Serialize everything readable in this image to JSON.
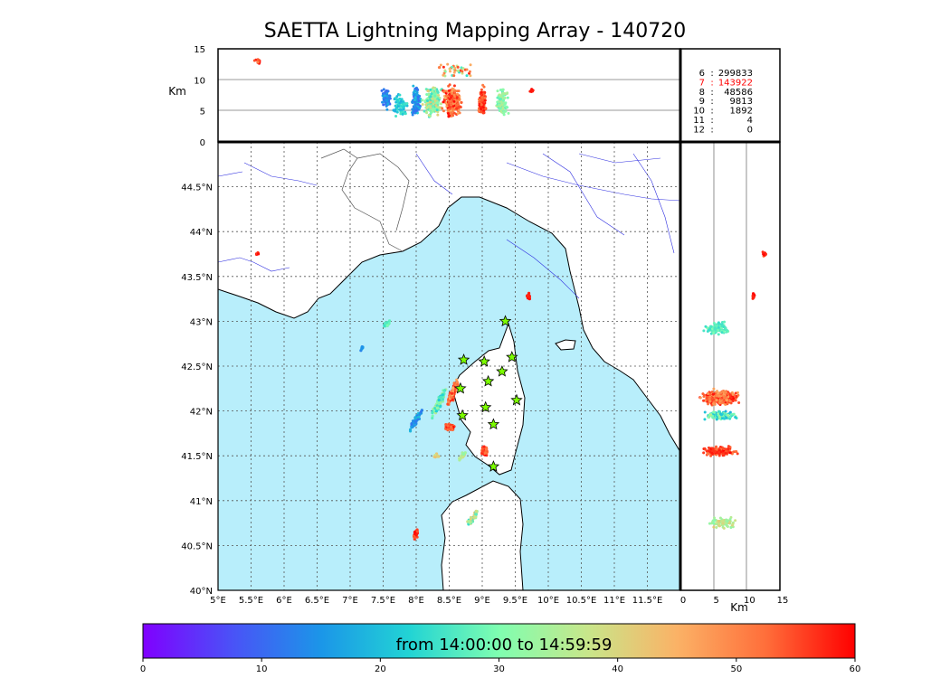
{
  "title": "SAETTA Lightning Mapping Array - 140720",
  "colorbar": {
    "label": "from 14:00:00 to 14:59:59",
    "ticks": [
      "0",
      "10",
      "20",
      "30",
      "40",
      "50",
      "60"
    ],
    "min": 0,
    "max": 60,
    "colors": [
      "#8000ff",
      "#4a52f7",
      "#1b96e8",
      "#22d4d4",
      "#7ffeb0",
      "#c8e68a",
      "#fbb266",
      "#ff6e3a",
      "#ff0000"
    ]
  },
  "map": {
    "lon_ticks": [
      "5°E",
      "5.5°E",
      "6°E",
      "6.5°E",
      "7°E",
      "7.5°E",
      "8°E",
      "8.5°E",
      "9°E",
      "9.5°E",
      "10°E",
      "10.5°E",
      "11°E",
      "11.5°E"
    ],
    "lat_ticks": [
      "44.5°N",
      "44°N",
      "43.5°N",
      "43°N",
      "42.5°N",
      "42°N",
      "41.5°N",
      "41°N",
      "40.5°N",
      "40°N"
    ],
    "lon_range": [
      5,
      12
    ],
    "lat_range": [
      40,
      45
    ],
    "sea_color": "#b8eefb",
    "stations": [
      {
        "lon": 9.35,
        "lat": 43.0
      },
      {
        "lon": 9.45,
        "lat": 42.6
      },
      {
        "lon": 9.03,
        "lat": 42.55
      },
      {
        "lon": 8.72,
        "lat": 42.57
      },
      {
        "lon": 9.3,
        "lat": 42.44
      },
      {
        "lon": 9.09,
        "lat": 42.33
      },
      {
        "lon": 8.67,
        "lat": 42.25
      },
      {
        "lon": 9.52,
        "lat": 42.12
      },
      {
        "lon": 9.05,
        "lat": 42.04
      },
      {
        "lon": 8.7,
        "lat": 41.95
      },
      {
        "lon": 9.17,
        "lat": 41.85
      },
      {
        "lon": 9.17,
        "lat": 41.38
      }
    ]
  },
  "top_panel": {
    "ylabel": "Km",
    "yticks": [
      "0",
      "5",
      "10",
      "15"
    ],
    "yrange": [
      0,
      15
    ]
  },
  "side_panel": {
    "xlabel": "Km",
    "xticks": [
      "0",
      "5",
      "10",
      "15"
    ],
    "xrange": [
      0,
      15
    ]
  },
  "counts": [
    {
      "level": "6",
      "count": "299833",
      "highlight": false
    },
    {
      "level": "7",
      "count": "143922",
      "highlight": true
    },
    {
      "level": "8",
      "count": "48586",
      "highlight": false
    },
    {
      "level": "9",
      "count": "9813",
      "highlight": false
    },
    {
      "level": "10",
      "count": "1892",
      "highlight": false
    },
    {
      "level": "11",
      "count": "4",
      "highlight": false
    },
    {
      "level": "12",
      "count": "0",
      "highlight": false
    }
  ]
}
